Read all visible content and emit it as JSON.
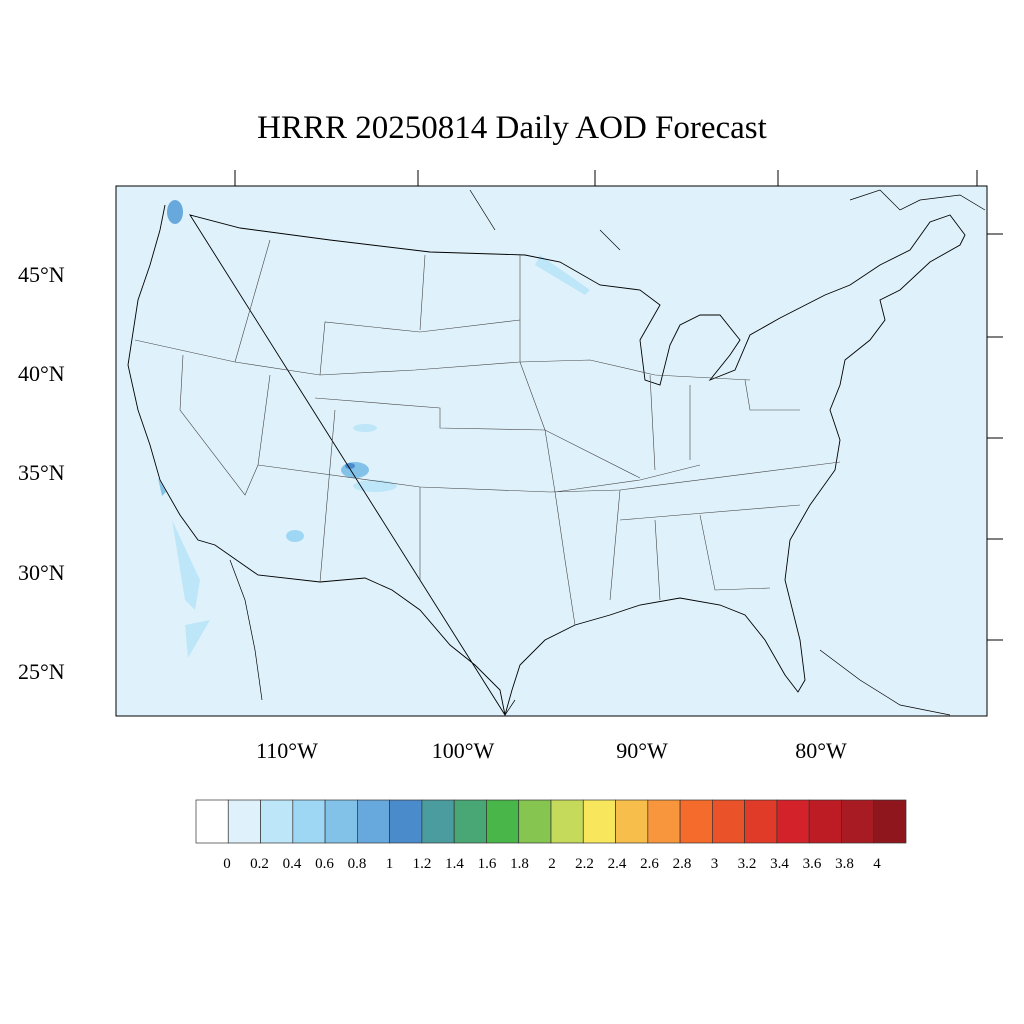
{
  "title": "HRRR 20250814 Daily AOD Forecast",
  "map": {
    "projection": "lambert-conformal",
    "region": "CONUS",
    "background_color": "#dff2fb",
    "lat_labels": [
      "45°N",
      "40°N",
      "35°N",
      "30°N",
      "25°N"
    ],
    "lon_labels": [
      "110°W",
      "100°W",
      "90°W",
      "80°W"
    ]
  },
  "colorbar": {
    "colors": [
      "#ffffff",
      "#dff2fb",
      "#bde6f8",
      "#9ed7f4",
      "#83c2e8",
      "#67a9dc",
      "#4a8ccb",
      "#4a9c9e",
      "#48a774",
      "#49b649",
      "#86c650",
      "#c5d95a",
      "#f8e75c",
      "#f8be4b",
      "#f7963c",
      "#f46b2c",
      "#ea5229",
      "#e03a28",
      "#d3222a",
      "#bd1c24",
      "#a91b22",
      "#8f161c"
    ],
    "labels": [
      "0",
      "0.2",
      "0.4",
      "0.6",
      "0.8",
      "1",
      "1.2",
      "1.4",
      "1.6",
      "1.8",
      "2",
      "2.2",
      "2.4",
      "2.6",
      "2.8",
      "3",
      "3.2",
      "3.4",
      "3.6",
      "3.8",
      "4"
    ]
  }
}
